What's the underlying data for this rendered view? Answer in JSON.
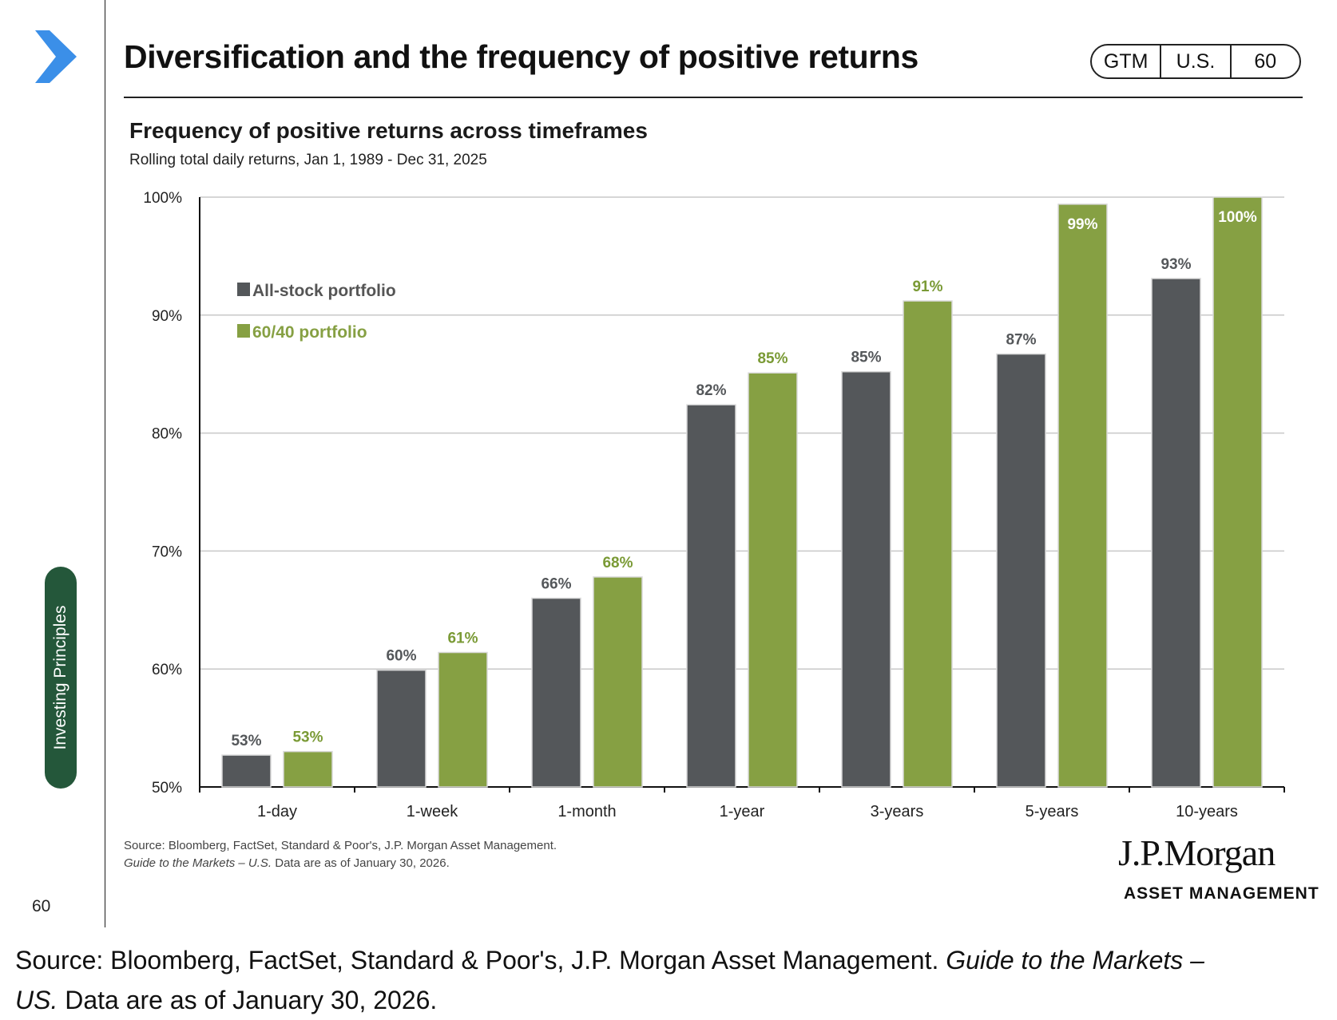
{
  "header": {
    "title": "Diversification and the frequency of positive returns",
    "badge": [
      "GTM",
      "U.S.",
      "60"
    ]
  },
  "sidebar": {
    "section_label": "Investing Principles",
    "page_number": "60"
  },
  "chart_data": {
    "type": "bar",
    "title": "Frequency of positive returns across timeframes",
    "subtitle": "Rolling total daily returns, Jan 1, 1989 - Dec 31, 2025",
    "categories": [
      "1-day",
      "1-week",
      "1-month",
      "1-year",
      "3-years",
      "5-years",
      "10-years"
    ],
    "series": [
      {
        "name": "All-stock portfolio",
        "color": "#54575a",
        "values": [
          52.7,
          59.9,
          66.0,
          82.4,
          85.2,
          86.7,
          93.1
        ],
        "labels": [
          "53%",
          "60%",
          "66%",
          "82%",
          "85%",
          "87%",
          "93%"
        ]
      },
      {
        "name": "60/40 portfolio",
        "color": "#86a043",
        "values": [
          53.0,
          61.4,
          67.8,
          85.1,
          91.2,
          99.4,
          100
        ],
        "labels": [
          "53%",
          "61%",
          "68%",
          "85%",
          "91%",
          "99%",
          "100%"
        ]
      }
    ],
    "yticks": [
      "50%",
      "60%",
      "70%",
      "80%",
      "90%",
      "100%"
    ],
    "ylim": [
      50,
      100
    ],
    "grid": true,
    "legend_position": "top-left"
  },
  "footer": {
    "source_line1": "Source: Bloomberg, FactSet, Standard & Poor's, J.P. Morgan Asset Management.",
    "source_line2_italic": "Guide to the Markets – U.S.",
    "source_line2_rest": " Data are as of January 30, 2026.",
    "brand_name": "J.P.Morgan",
    "brand_sub": "ASSET MANAGEMENT"
  },
  "caption": {
    "prefix": "Source: Bloomberg, FactSet, Standard & Poor's, J.P. Morgan Asset Management. ",
    "italic": "Guide to the Markets – US.",
    "suffix": " Data are as of January 30, 2026."
  }
}
